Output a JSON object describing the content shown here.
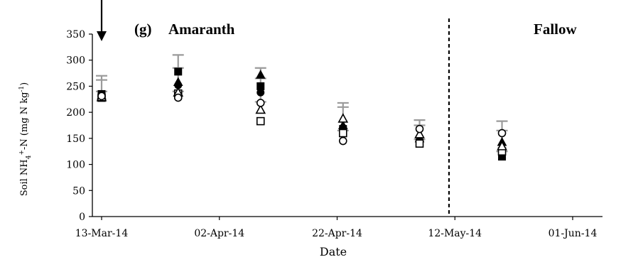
{
  "chart_data": {
    "type": "scatter",
    "panel_label": "(g)",
    "crop_label": "Amaranth",
    "fallow_label": "Fallow",
    "xlabel": "Date",
    "ylabel": {
      "prefix": "Soil NH",
      "sub": "4",
      "sup": "+",
      "mid": "-N (mg N kg",
      "sup2": "-1",
      "suffix": ")"
    },
    "ylim": [
      0,
      350
    ],
    "y_ticks": [
      "0",
      "50",
      "100",
      "150",
      "200",
      "250",
      "300",
      "350"
    ],
    "x_ticks": [
      {
        "date": "2014-03-13",
        "label": "13-Mar-14"
      },
      {
        "date": "2014-04-02",
        "label": "02-Apr-14"
      },
      {
        "date": "2014-04-22",
        "label": "22-Apr-14"
      },
      {
        "date": "2014-05-12",
        "label": "12-May-14"
      },
      {
        "date": "2014-06-01",
        "label": "01-Jun-14"
      }
    ],
    "xlim": [
      "2014-03-08",
      "2014-06-08"
    ],
    "arrow_date": "2014-03-13",
    "divider_date": "2014-05-11",
    "grid": false,
    "series": [
      {
        "marker": "filled-square",
        "x": [
          "2014-03-13",
          "2014-03-26",
          "2014-04-09",
          "2014-04-23",
          "2014-05-06",
          "2014-05-20"
        ],
        "y": [
          235,
          278,
          250,
          168,
          142,
          115
        ]
      },
      {
        "marker": "filled-triangle",
        "x": [
          "2014-03-13",
          "2014-03-26",
          "2014-04-09",
          "2014-04-23",
          "2014-05-06",
          "2014-05-20"
        ],
        "y": [
          232,
          258,
          272,
          175,
          150,
          143
        ]
      },
      {
        "marker": "filled-circle",
        "x": [
          "2014-03-13",
          "2014-03-26",
          "2014-04-09",
          "2014-04-23",
          "2014-05-06",
          "2014-05-20"
        ],
        "y": [
          230,
          252,
          238,
          170,
          145,
          120
        ]
      },
      {
        "marker": "open-square",
        "x": [
          "2014-03-13",
          "2014-03-26",
          "2014-04-09",
          "2014-04-23",
          "2014-05-06",
          "2014-05-20"
        ],
        "y": [
          228,
          236,
          183,
          160,
          140,
          125
        ]
      },
      {
        "marker": "open-triangle",
        "x": [
          "2014-03-13",
          "2014-03-26",
          "2014-04-09",
          "2014-04-23",
          "2014-05-06",
          "2014-05-20"
        ],
        "y": [
          229,
          238,
          205,
          188,
          158,
          135
        ]
      },
      {
        "marker": "open-circle",
        "x": [
          "2014-03-13",
          "2014-03-26",
          "2014-04-09",
          "2014-04-23",
          "2014-05-06",
          "2014-05-20"
        ],
        "y": [
          231,
          228,
          218,
          145,
          168,
          160
        ]
      }
    ],
    "error_caps": {
      "x": [
        "2014-03-13",
        "2014-03-26",
        "2014-04-09",
        "2014-04-23",
        "2014-05-06",
        "2014-05-20"
      ],
      "upper": [
        [
          270,
          262
        ],
        [
          310,
          285
        ],
        [
          285,
          265
        ],
        [
          218,
          210
        ],
        [
          185,
          175
        ],
        [
          183,
          165
        ]
      ],
      "lower": [
        [
          240
        ],
        [
          240
        ],
        [
          220
        ],
        [
          165
        ],
        [
          148
        ],
        [
          125
        ]
      ]
    }
  }
}
